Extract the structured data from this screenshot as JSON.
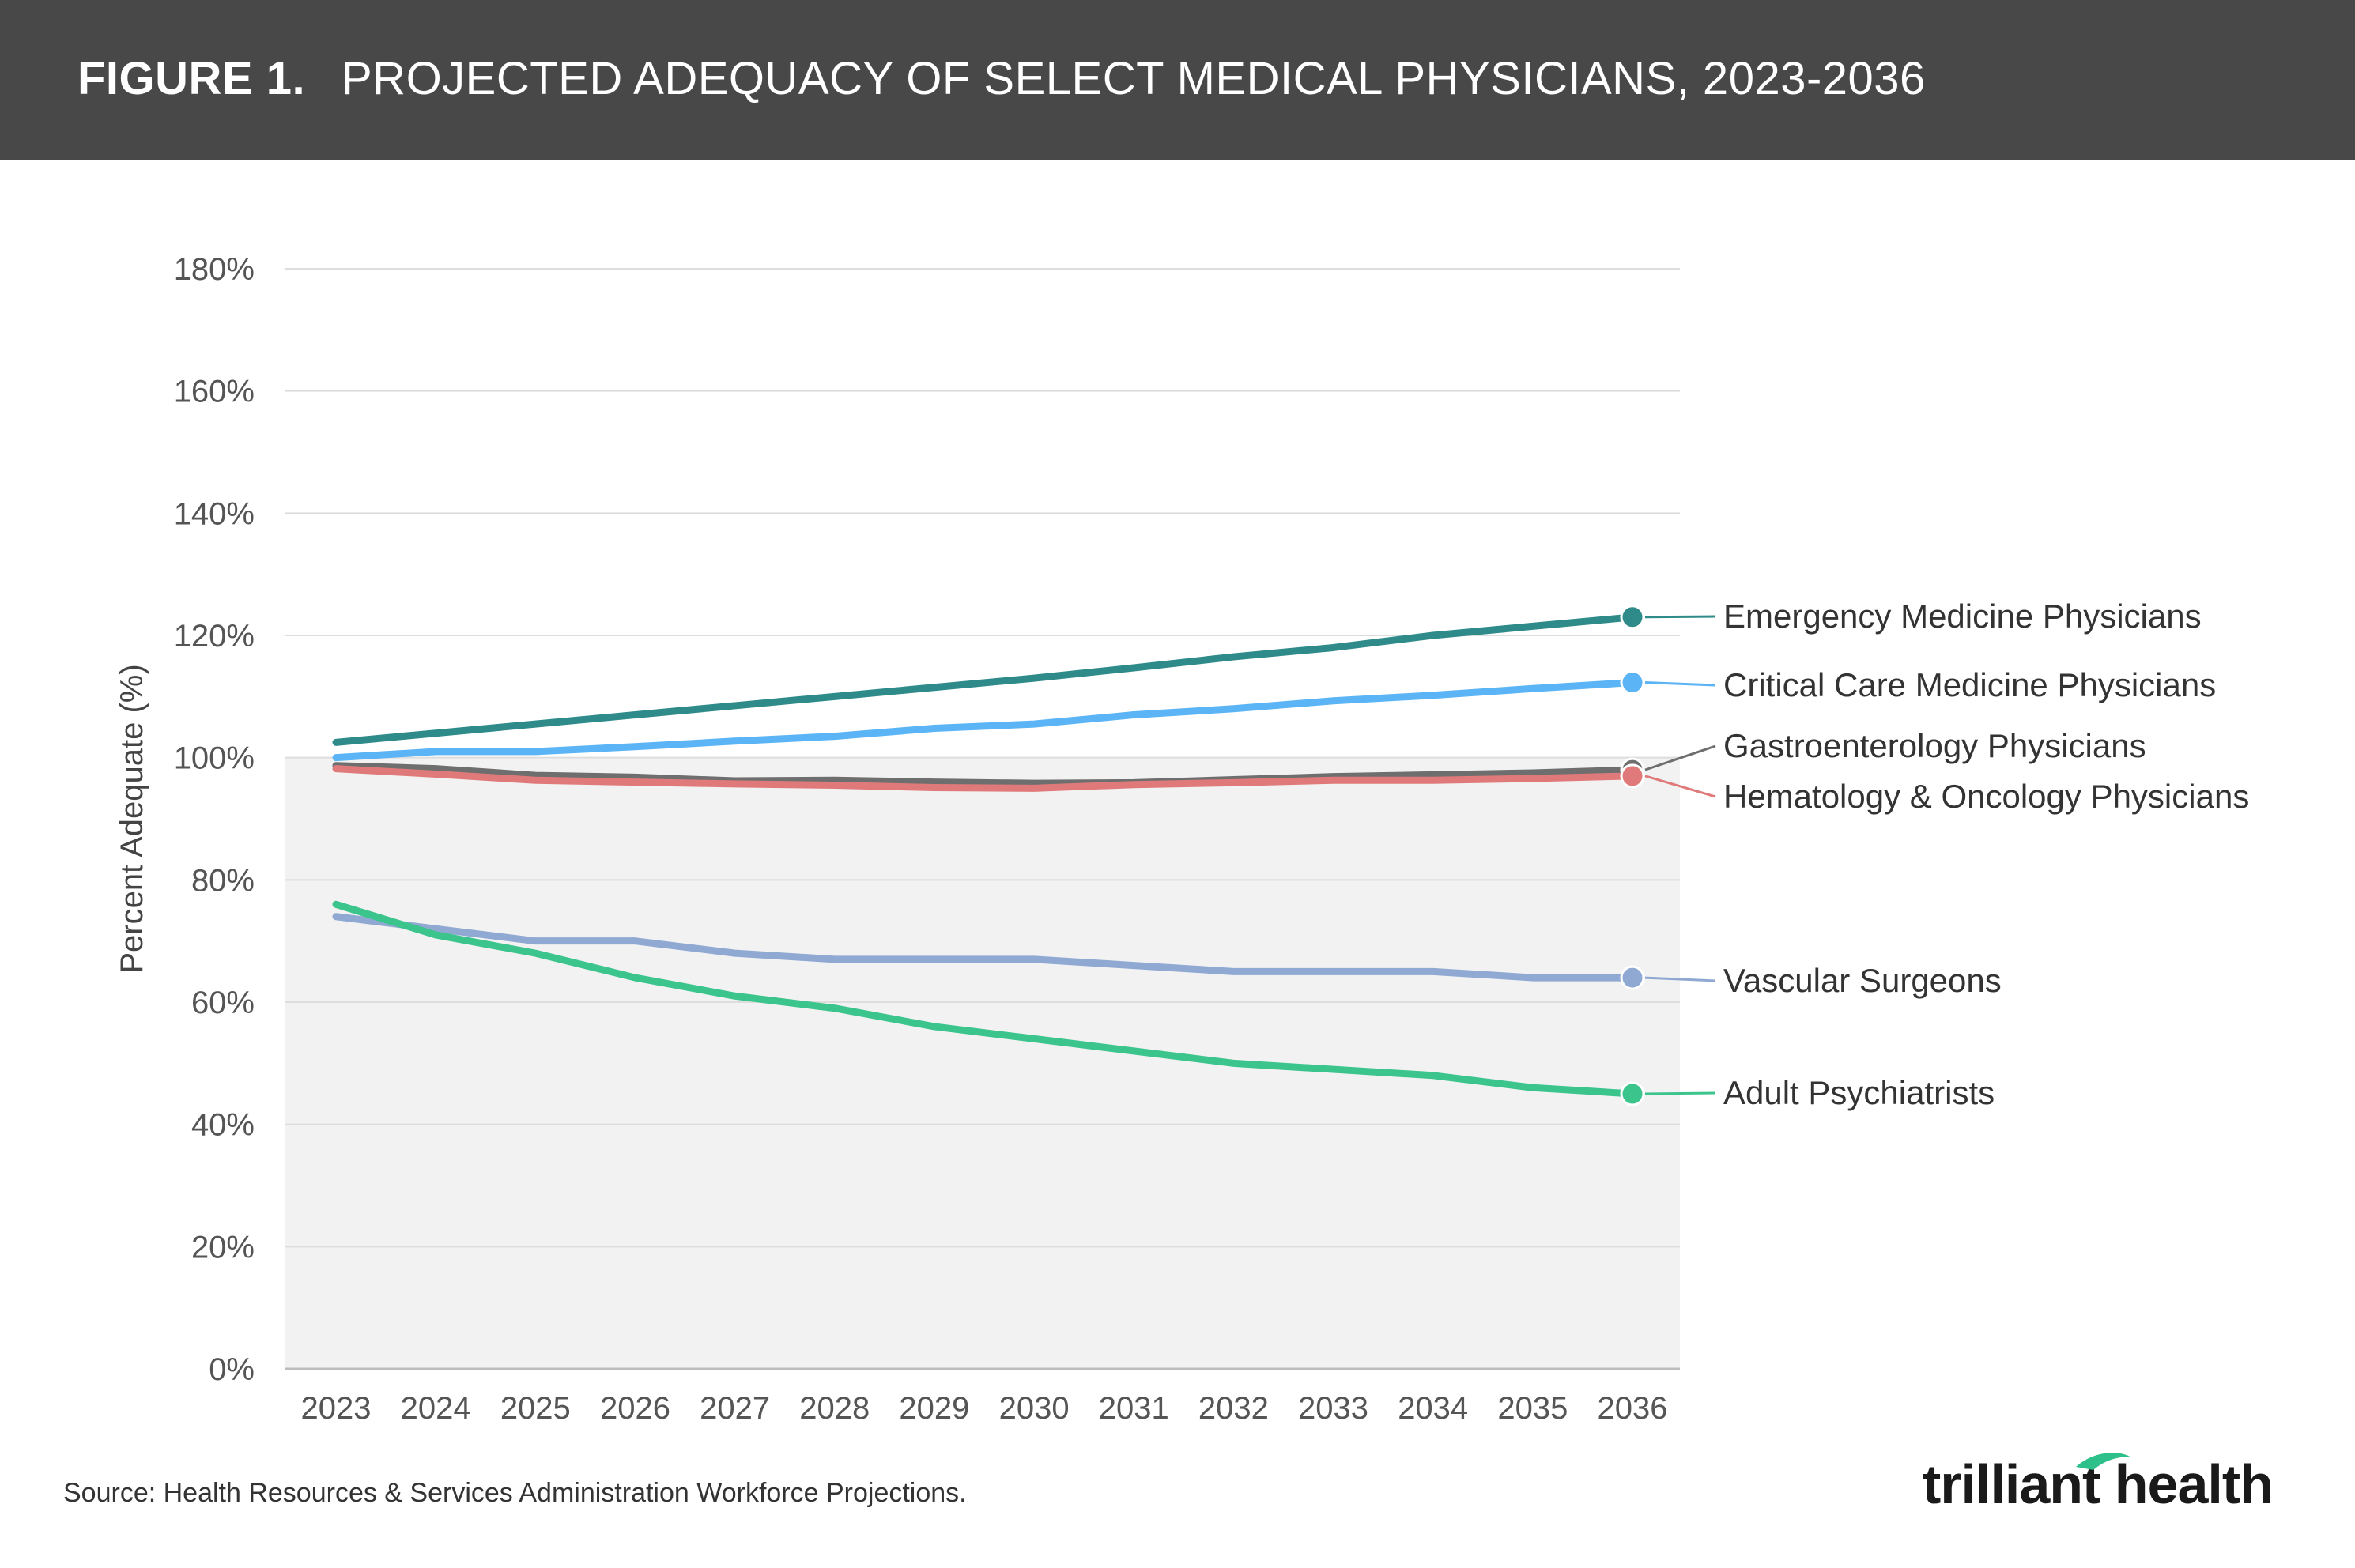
{
  "header": {
    "figure_label": "FIGURE 1.",
    "title": "PROJECTED ADEQUACY OF SELECT MEDICAL PHYSICIANS, 2023-2036"
  },
  "chart_data": {
    "type": "line",
    "ylabel": "Percent Adequate (%)",
    "xlabel": "",
    "ylim": [
      0,
      180
    ],
    "yticks": [
      "0%",
      "20%",
      "40%",
      "60%",
      "80%",
      "100%",
      "120%",
      "140%",
      "160%",
      "180%"
    ],
    "categories": [
      "2023",
      "2024",
      "2025",
      "2026",
      "2027",
      "2028",
      "2029",
      "2030",
      "2031",
      "2032",
      "2033",
      "2034",
      "2035",
      "2036"
    ],
    "shaded_region_below": 100,
    "grid": true,
    "legend": "direct labels at right end of each line",
    "series": [
      {
        "name": "Emergency Medicine Physicians",
        "color": "#2e8b89",
        "values": [
          102.5,
          104,
          105.5,
          107,
          108.5,
          110,
          111.5,
          113,
          114.7,
          116.5,
          118,
          120,
          121.5,
          123
        ]
      },
      {
        "name": "Critical Care Medicine Physicians",
        "color": "#5ab4f5",
        "values": [
          100,
          101,
          101,
          101.8,
          102.7,
          103.5,
          104.8,
          105.5,
          107,
          108,
          109.3,
          110.2,
          111.3,
          112.3
        ]
      },
      {
        "name": "Gastroenterology Physicians",
        "color": "#6e6e6e",
        "values": [
          98.7,
          98.2,
          97.1,
          96.8,
          96.2,
          96.3,
          96.0,
          95.8,
          95.9,
          96.4,
          96.9,
          97.2,
          97.5,
          98
        ]
      },
      {
        "name": "Hematology & Oncology Physicians",
        "color": "#e07a7a",
        "values": [
          98.2,
          97.3,
          96.3,
          96.0,
          95.7,
          95.5,
          95.1,
          95.0,
          95.6,
          95.9,
          96.3,
          96.3,
          96.6,
          97
        ]
      },
      {
        "name": "Vascular Surgeons",
        "color": "#8fa9d3",
        "values": [
          74,
          72,
          70,
          70,
          68,
          67,
          67,
          67,
          66,
          65,
          65,
          65,
          64,
          64
        ]
      },
      {
        "name": "Adult Psychiatrists",
        "color": "#3cc48d",
        "values": [
          76,
          71,
          68,
          64,
          61,
          59,
          56,
          54,
          52,
          50,
          49,
          48,
          46,
          45
        ]
      }
    ]
  },
  "footer": {
    "source": "Source: Health Resources & Services Administration Workforce Projections.",
    "logo_text": "trilliant health"
  }
}
